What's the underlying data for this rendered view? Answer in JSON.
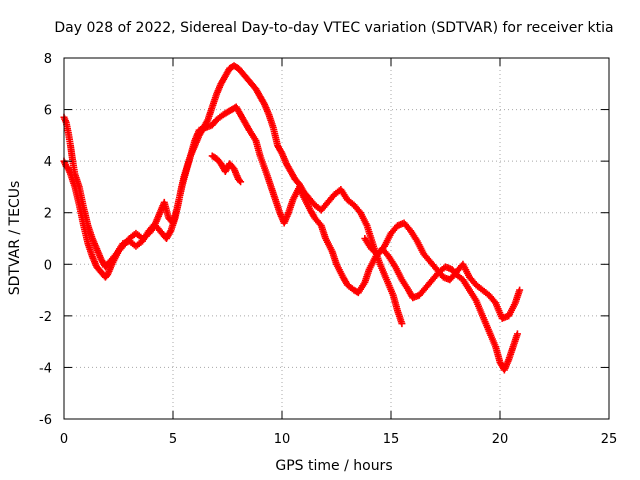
{
  "chart_data": {
    "type": "scatter",
    "title": "Day 028 of 2022, Sidereal Day-to-day VTEC variation (SDTVAR) for receiver ktia",
    "xlabel": "GPS time / hours",
    "ylabel": "SDTVAR / TECUs",
    "xlim": [
      0,
      25
    ],
    "ylim": [
      -6,
      8
    ],
    "xticks": [
      0,
      5,
      10,
      15,
      20,
      25
    ],
    "yticks": [
      -6,
      -4,
      -2,
      0,
      2,
      4,
      6,
      8
    ],
    "grid": true,
    "marker": "plus",
    "series": [
      {
        "name": "SDTVAR",
        "color": "#ff0000",
        "segments": [
          {
            "x": [
              0.0,
              0.1,
              0.2,
              0.3,
              0.5,
              0.7,
              0.9,
              1.1,
              1.3,
              1.5,
              1.7,
              1.9,
              2.0,
              2.2,
              2.5,
              2.8,
              3.0,
              3.3,
              3.6,
              3.9,
              4.2,
              4.5,
              4.7,
              4.9,
              5.1,
              5.3,
              5.5,
              5.8,
              6.0,
              6.2,
              6.5,
              6.8,
              7.0,
              7.3,
              7.5,
              7.7,
              7.9,
              8.1,
              8.3,
              8.5,
              8.8,
              9.0,
              9.3,
              9.5,
              9.7,
              9.9,
              10.1,
              10.3,
              10.5,
              10.8,
              11.0,
              11.3,
              11.5,
              11.8,
              12.0,
              12.3,
              12.5,
              12.8,
              13.0,
              13.3,
              13.5,
              13.8,
              14.0,
              14.3,
              14.6,
              14.9,
              15.2,
              15.5,
              15.8,
              16.0,
              16.3,
              16.6,
              16.9,
              17.2,
              17.5,
              17.8,
              18.0,
              18.3,
              18.6,
              18.9,
              19.2,
              19.5,
              19.8,
              20.0,
              20.2,
              20.4,
              20.6,
              20.8
            ],
            "y": [
              4.0,
              3.8,
              3.7,
              3.5,
              3.0,
              2.3,
              1.5,
              0.8,
              0.3,
              -0.1,
              -0.3,
              -0.5,
              -0.4,
              0.0,
              0.5,
              0.8,
              1.0,
              1.2,
              1.0,
              1.2,
              1.5,
              1.2,
              1.0,
              1.3,
              1.8,
              2.6,
              3.4,
              4.2,
              4.8,
              5.2,
              5.3,
              5.4,
              5.6,
              5.8,
              5.9,
              6.0,
              6.1,
              5.8,
              5.5,
              5.2,
              4.8,
              4.2,
              3.5,
              3.0,
              2.5,
              2.0,
              1.6,
              2.0,
              2.5,
              3.0,
              2.6,
              2.1,
              1.8,
              1.5,
              1.0,
              0.5,
              0.0,
              -0.5,
              -0.8,
              -1.0,
              -1.1,
              -0.7,
              -0.2,
              0.3,
              0.6,
              0.3,
              -0.1,
              -0.6,
              -1.0,
              -1.3,
              -1.2,
              -0.9,
              -0.6,
              -0.3,
              -0.1,
              -0.2,
              -0.4,
              -0.6,
              -1.0,
              -1.4,
              -2.0,
              -2.6,
              -3.2,
              -3.8,
              -4.1,
              -3.7,
              -3.2,
              -2.7
            ]
          },
          {
            "x": [
              0.0,
              0.1,
              0.2,
              0.3,
              0.4,
              0.5,
              0.7,
              0.9,
              1.1,
              1.3,
              1.5,
              1.7,
              1.9,
              2.1,
              2.4,
              2.7,
              3.0,
              3.3,
              3.6,
              3.9,
              4.2,
              4.4,
              4.6,
              4.8,
              5.0,
              5.2,
              5.4,
              5.6,
              5.8,
              6.0,
              6.2,
              6.4,
              6.6,
              6.8,
              7.0,
              7.2,
              7.4,
              7.6,
              7.8,
              8.0,
              8.2,
              8.4,
              8.6,
              8.8,
              9.0,
              9.2,
              9.4,
              9.6,
              9.8,
              10.0,
              10.2,
              10.4,
              10.6,
              10.8,
              11.0,
              11.2,
              11.5,
              11.8,
              12.1,
              12.4,
              12.7,
              13.0,
              13.3,
              13.6,
              13.9,
              14.2,
              14.5,
              14.8,
              15.1,
              15.3,
              15.5
            ],
            "y": [
              5.7,
              5.5,
              5.1,
              4.6,
              4.0,
              3.5,
              3.0,
              2.2,
              1.5,
              1.0,
              0.6,
              0.2,
              -0.1,
              0.1,
              0.4,
              0.8,
              0.9,
              0.7,
              0.9,
              1.3,
              1.6,
              2.0,
              2.4,
              1.8,
              1.6,
              2.2,
              3.0,
              3.6,
              4.2,
              4.6,
              5.0,
              5.3,
              5.6,
              6.1,
              6.6,
              7.0,
              7.3,
              7.6,
              7.7,
              7.6,
              7.4,
              7.2,
              7.0,
              6.8,
              6.5,
              6.2,
              5.8,
              5.3,
              4.6,
              4.3,
              3.9,
              3.6,
              3.3,
              3.1,
              2.8,
              2.6,
              2.3,
              2.1,
              2.4,
              2.7,
              2.9,
              2.5,
              2.3,
              2.0,
              1.5,
              0.7,
              0.0,
              -0.6,
              -1.2,
              -1.8,
              -2.3
            ]
          },
          {
            "x": [
              13.8,
              14.1,
              14.4,
              14.7,
              15.0,
              15.3,
              15.6,
              15.9,
              16.2,
              16.5,
              16.8,
              17.1,
              17.4,
              17.7,
              18.0,
              18.3,
              18.6,
              18.9,
              19.2,
              19.5,
              19.8,
              20.1,
              20.4,
              20.7,
              20.9
            ],
            "y": [
              1.0,
              0.6,
              0.4,
              0.7,
              1.2,
              1.5,
              1.6,
              1.3,
              0.9,
              0.4,
              0.1,
              -0.2,
              -0.5,
              -0.6,
              -0.3,
              0.0,
              -0.5,
              -0.8,
              -1.0,
              -1.2,
              -1.5,
              -2.1,
              -2.0,
              -1.5,
              -1.0
            ]
          },
          {
            "x": [
              6.8,
              7.0,
              7.2,
              7.4,
              7.6,
              7.8,
              8.0,
              8.1
            ],
            "y": [
              4.2,
              4.1,
              3.9,
              3.6,
              3.9,
              3.7,
              3.3,
              3.2
            ]
          }
        ]
      }
    ]
  }
}
